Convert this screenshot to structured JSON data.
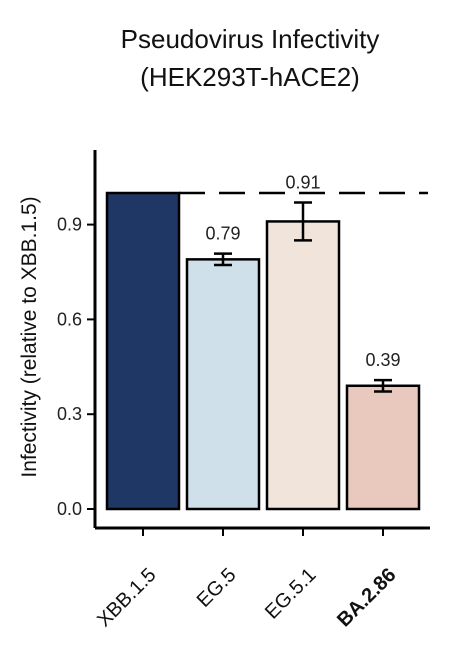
{
  "chart_data": {
    "type": "bar",
    "title_lines": [
      "Pseudovirus Infectivity",
      "(HEK293T-hACE2)"
    ],
    "ylabel": "Infectivity (relative to XBB.1.5)",
    "xlabel": "",
    "ylim": [
      0,
      1.1
    ],
    "yticks": [
      0.0,
      0.3,
      0.6,
      0.9
    ],
    "ytick_labels": [
      "0.0",
      "0.3",
      "0.6",
      "0.9"
    ],
    "reference_line": 1.0,
    "reference_style": "dashed",
    "categories": [
      "XBB.1.5",
      "EG.5",
      "EG.5.1",
      "BA.2.86"
    ],
    "bold_categories": [
      "BA.2.86"
    ],
    "values": [
      1.0,
      0.79,
      0.91,
      0.39
    ],
    "errors": [
      null,
      0.018,
      0.06,
      0.018
    ],
    "labels": [
      "",
      "0.79",
      "0.91",
      "0.39"
    ],
    "colors": [
      "#1f3764",
      "#cfe0ea",
      "#f1e4da",
      "#e9c9bd"
    ],
    "grid": false,
    "legend": "none"
  }
}
